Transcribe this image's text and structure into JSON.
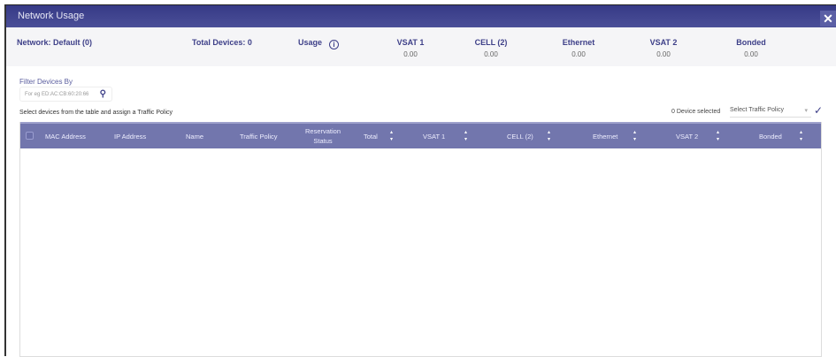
{
  "window": {
    "title": "Network Usage",
    "close_icon": "close-icon"
  },
  "summary": {
    "network": "Network: Default (0)",
    "total_devices": "Total Devices: 0",
    "usage": "Usage",
    "columns": [
      {
        "label": "VSAT 1",
        "value": "0.00"
      },
      {
        "label": "CELL (2)",
        "value": "0.00"
      },
      {
        "label": "Ethernet",
        "value": "0.00"
      },
      {
        "label": "VSAT 2",
        "value": "0.00"
      },
      {
        "label": "Bonded",
        "value": "0.00"
      }
    ]
  },
  "filter": {
    "label": "Filter Devices By",
    "placeholder": "For eg ED:AC:CB:60:20:66"
  },
  "hint": "Select devices from the table and assign a Traffic Policy",
  "selection": {
    "count_text": "0 Device selected",
    "policy_placeholder": "Select Traffic Policy"
  },
  "table": {
    "headers": [
      "MAC Address",
      "IP Address",
      "Name",
      "Traffic Policy",
      "Reservation Status",
      "Total",
      "VSAT 1",
      "CELL (2)",
      "Ethernet",
      "VSAT 2",
      "Bonded"
    ],
    "rows": []
  }
}
